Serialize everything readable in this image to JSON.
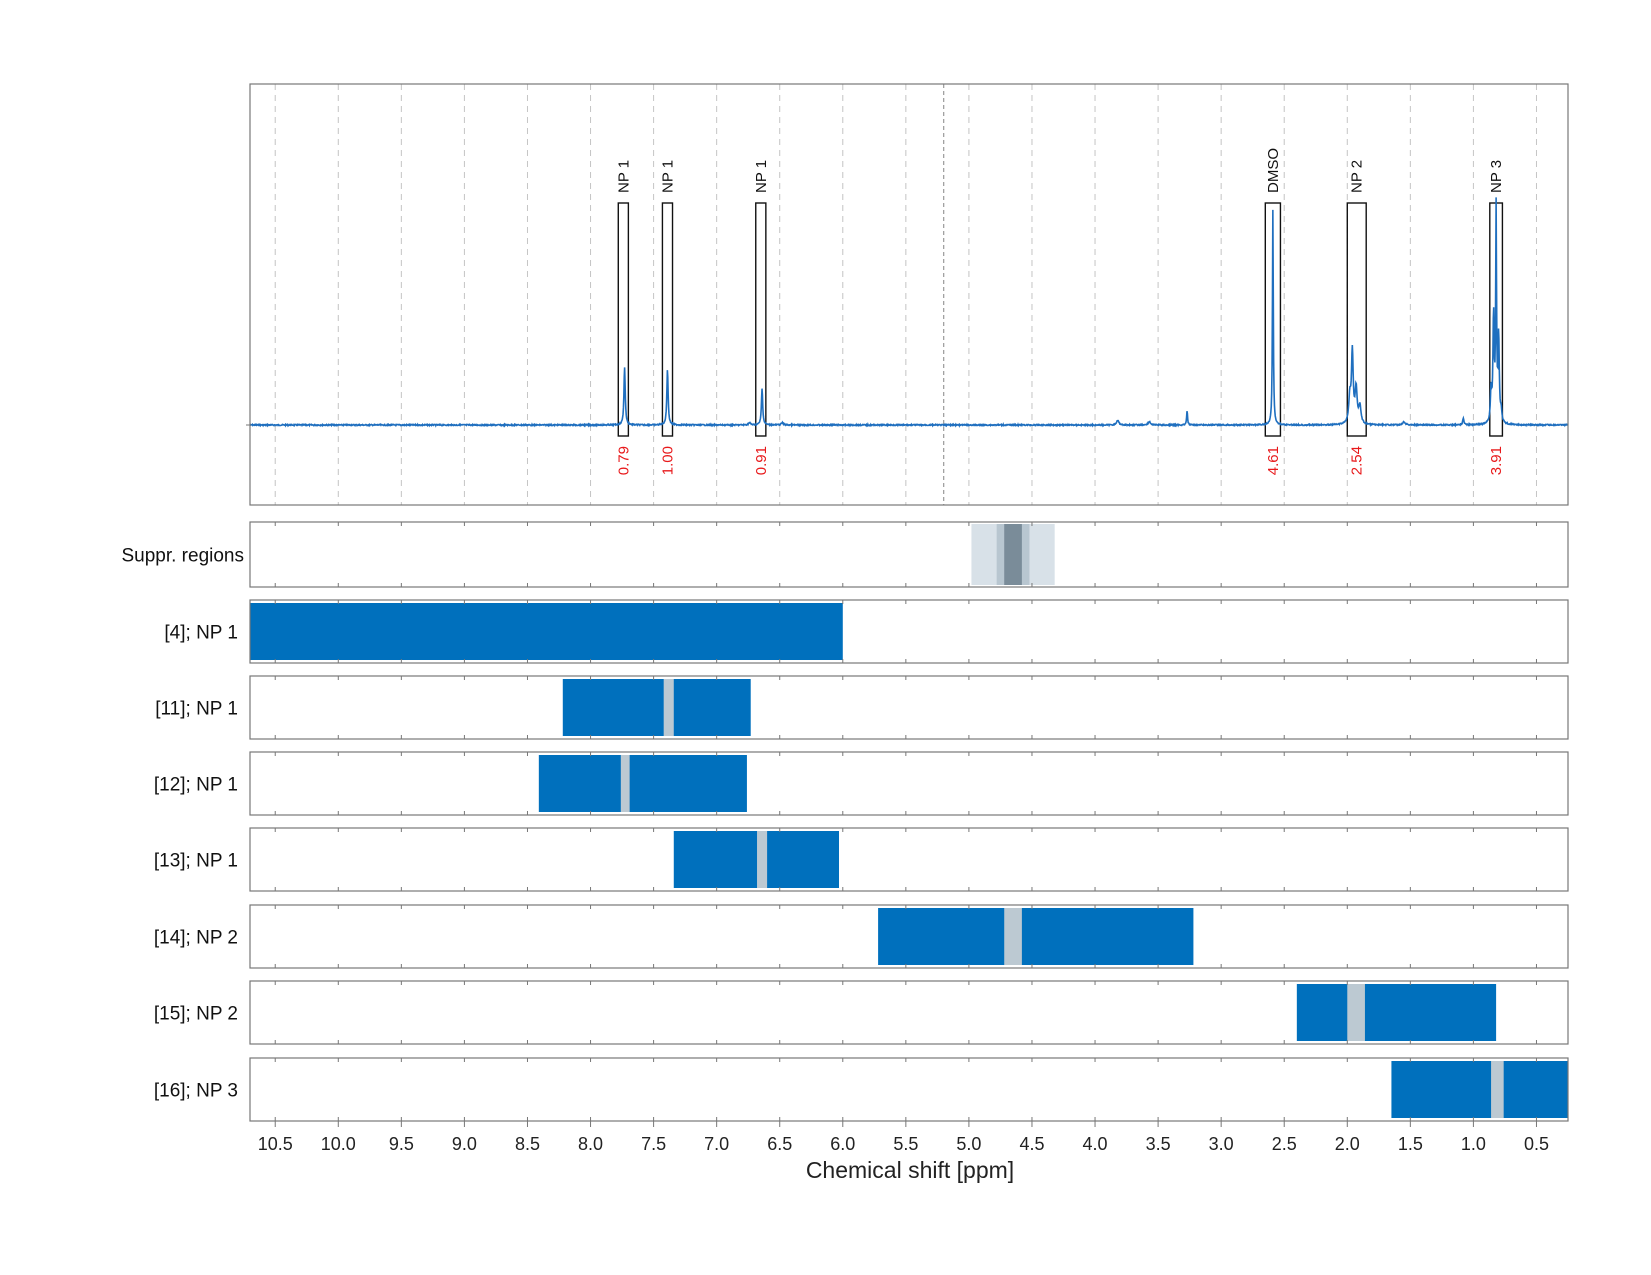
{
  "chart_data": {
    "type": "nmr-spectrum-with-ranges",
    "xlabel": "Chemical shift [ppm]",
    "x_reversed": true,
    "xlim": [
      10.7,
      0.25
    ],
    "xticks": [
      10.5,
      10.0,
      9.5,
      9.0,
      8.5,
      8.0,
      7.5,
      7.0,
      6.5,
      6.0,
      5.5,
      5.0,
      4.5,
      4.0,
      3.5,
      3.0,
      2.5,
      2.0,
      1.5,
      1.0,
      0.5
    ],
    "xtick_labels": [
      "10.5",
      "10.0",
      "9.5",
      "9.0",
      "8.5",
      "8.0",
      "7.5",
      "7.0",
      "6.5",
      "6.0",
      "5.5",
      "5.0",
      "4.5",
      "4.0",
      "3.5",
      "3.0",
      "2.5",
      "2.0",
      "1.5",
      "1.0",
      "0.5"
    ],
    "spectrum": {
      "color": "#1f6fbf",
      "ylim": [
        -0.35,
        1.0
      ],
      "peaks": [
        {
          "ppm": 7.73,
          "height": 0.27,
          "width": 0.006
        },
        {
          "ppm": 7.39,
          "height": 0.26,
          "width": 0.006
        },
        {
          "ppm": 6.64,
          "height": 0.17,
          "width": 0.006
        },
        {
          "ppm": 6.74,
          "height": 0.01,
          "width": 0.01
        },
        {
          "ppm": 6.48,
          "height": 0.01,
          "width": 0.01
        },
        {
          "ppm": 3.82,
          "height": 0.02,
          "width": 0.012
        },
        {
          "ppm": 3.57,
          "height": 0.015,
          "width": 0.012
        },
        {
          "ppm": 3.27,
          "height": 0.07,
          "width": 0.004
        },
        {
          "ppm": 2.59,
          "height": 1.0,
          "width": 0.004
        },
        {
          "ppm": 1.96,
          "height": 0.33,
          "width": 0.008
        },
        {
          "ppm": 1.93,
          "height": 0.16,
          "width": 0.01
        },
        {
          "ppm": 1.98,
          "height": 0.12,
          "width": 0.01
        },
        {
          "ppm": 1.9,
          "height": 0.08,
          "width": 0.01
        },
        {
          "ppm": 1.55,
          "height": 0.015,
          "width": 0.012
        },
        {
          "ppm": 1.08,
          "height": 0.03,
          "width": 0.006
        },
        {
          "ppm": 0.82,
          "height": 0.98,
          "width": 0.004
        },
        {
          "ppm": 0.84,
          "height": 0.5,
          "width": 0.006
        },
        {
          "ppm": 0.8,
          "height": 0.4,
          "width": 0.006
        },
        {
          "ppm": 0.86,
          "height": 0.15,
          "width": 0.006
        },
        {
          "ppm": 0.78,
          "height": 0.05,
          "width": 0.006
        }
      ]
    },
    "integration_regions": [
      {
        "label": "NP 1",
        "integral": "0.79",
        "from": 7.78,
        "to": 7.7
      },
      {
        "label": "NP 1",
        "integral": "1.00",
        "from": 7.43,
        "to": 7.35
      },
      {
        "label": "NP 1",
        "integral": "0.91",
        "from": 6.69,
        "to": 6.61
      },
      {
        "label": "DMSO",
        "integral": "4.61",
        "from": 2.65,
        "to": 2.53
      },
      {
        "label": "NP 2",
        "integral": "2.54",
        "from": 2.0,
        "to": 1.85
      },
      {
        "label": "NP 3",
        "integral": "3.91",
        "from": 0.87,
        "to": 0.77
      }
    ],
    "integral_color": "#e8191b",
    "center_line_ppm": 5.2,
    "suppression": {
      "label": "Suppr. regions",
      "bands": [
        {
          "from": 4.98,
          "to": 4.32,
          "color": "#d8e1e8"
        },
        {
          "from": 4.78,
          "to": 4.52,
          "color": "#b8c6d0"
        },
        {
          "from": 4.72,
          "to": 4.58,
          "color": "#7a8c99"
        }
      ]
    },
    "range_color": "#0070bd",
    "gap_color": "#bcc9d2",
    "ranges": [
      {
        "label": "[4]; NP 1",
        "from": 10.7,
        "to": 6.0,
        "gap": null
      },
      {
        "label": "[11]; NP 1",
        "from": 8.22,
        "to": 6.73,
        "gap": [
          7.42,
          7.34
        ]
      },
      {
        "label": "[12]; NP 1",
        "from": 8.41,
        "to": 6.76,
        "gap": [
          7.76,
          7.69
        ]
      },
      {
        "label": "[13]; NP 1",
        "from": 7.34,
        "to": 6.03,
        "gap": [
          6.68,
          6.6
        ]
      },
      {
        "label": "[14]; NP 2",
        "from": 5.72,
        "to": 3.22,
        "gap": [
          4.72,
          4.58
        ]
      },
      {
        "label": "[15]; NP 2",
        "from": 2.4,
        "to": 0.82,
        "gap": [
          2.0,
          1.86
        ]
      },
      {
        "label": "[16]; NP 3",
        "from": 1.65,
        "to": 0.25,
        "gap": [
          0.86,
          0.76
        ]
      }
    ]
  }
}
